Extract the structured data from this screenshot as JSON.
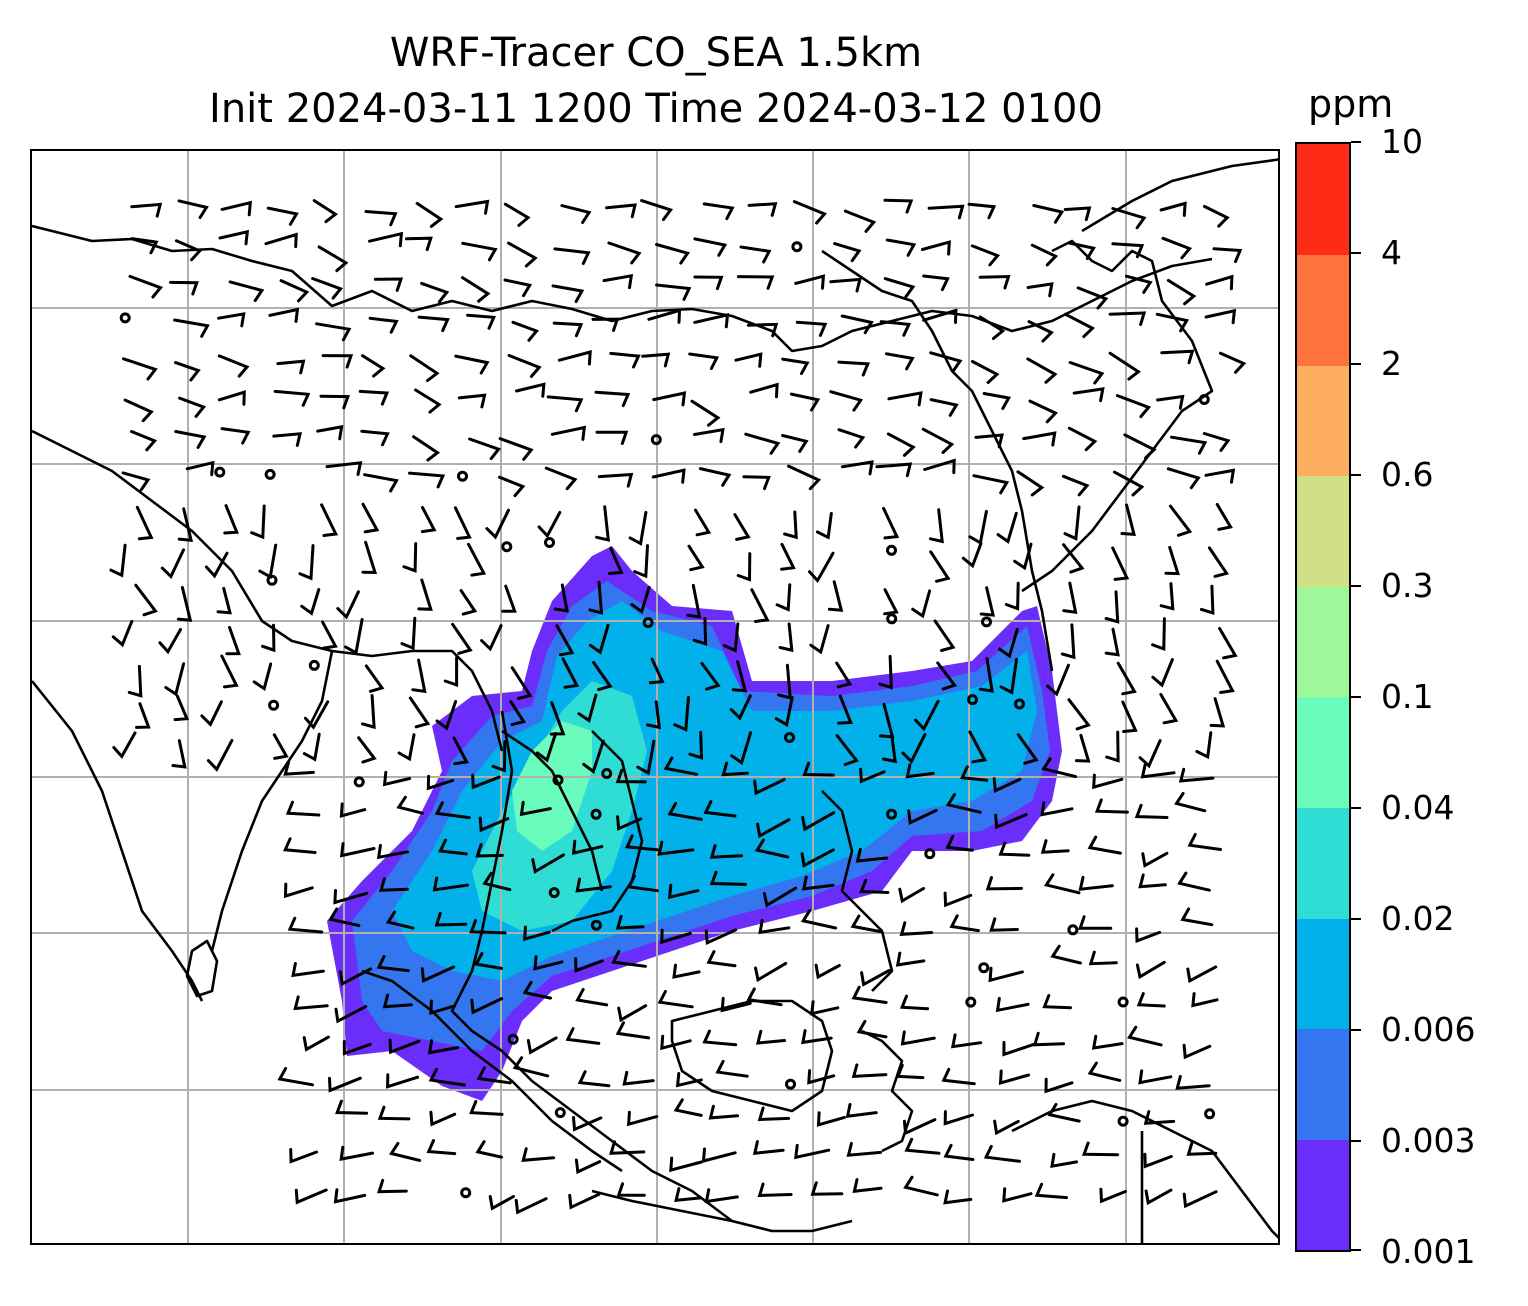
{
  "title": {
    "line1": "WRF-Tracer CO_SEA 1.5km",
    "line2": "Init 2024-03-11 1200 Time 2024-03-12 0100"
  },
  "colorbar": {
    "unit": "ppm",
    "labels": [
      "0.001",
      "0.003",
      "0.006",
      "0.02",
      "0.04",
      "0.1",
      "0.3",
      "0.6",
      "2",
      "4",
      "10"
    ],
    "colors": [
      "#6a2dfa",
      "#3475f0",
      "#03b1ea",
      "#2fddd4",
      "#6afcbd",
      "#9ef89a",
      "#cfe085",
      "#fdae61",
      "#ff743c",
      "#fe2b17"
    ]
  },
  "map": {
    "coastline_color": "#000000",
    "gridline_color": "#b0b0b0",
    "barb_color": "#000000",
    "plume": {
      "outer_concentration": "0.001",
      "core_concentration": "0.04"
    }
  }
}
